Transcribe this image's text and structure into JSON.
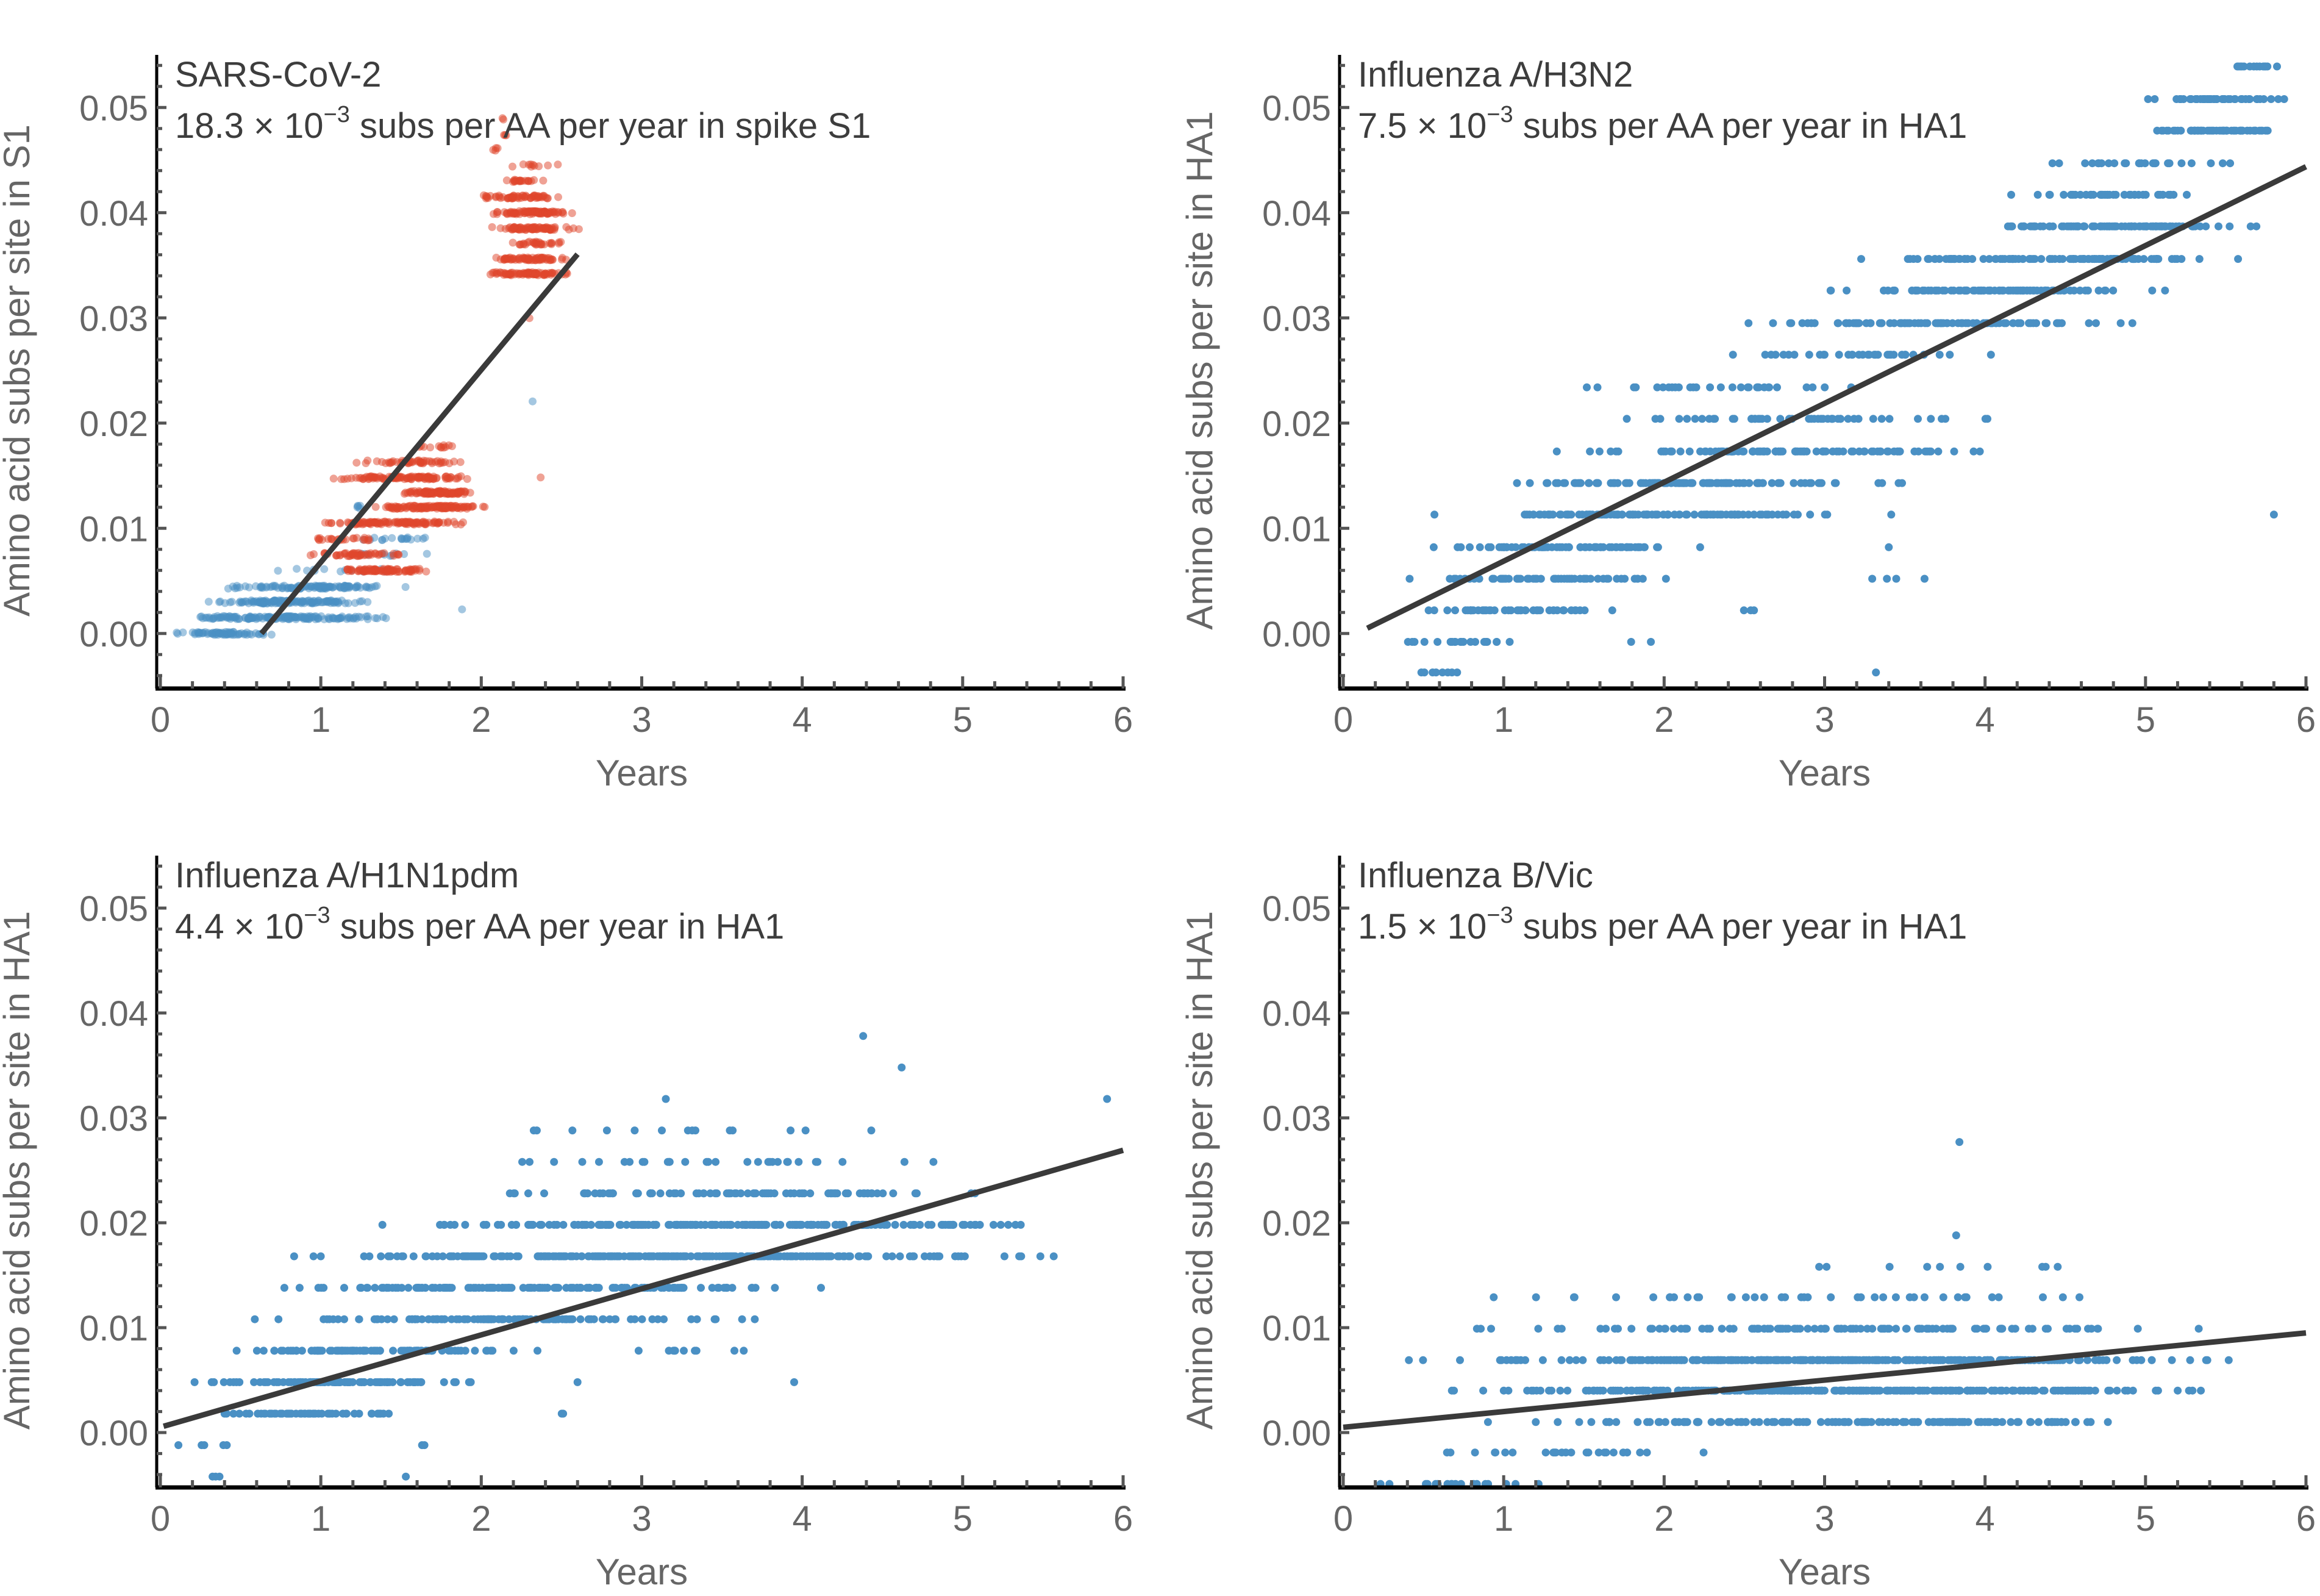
{
  "figure": {
    "x_axis_label": "Years",
    "colors": {
      "blue": "#4a90c4",
      "red": "#e0452b",
      "fit_line": "#3a3a3a",
      "axis": "#000000",
      "tick_label": "#666666",
      "text": "#3d3d3d"
    }
  },
  "chart_data": [
    {
      "type": "scatter",
      "id": "sars",
      "title": "SARS-CoV-2",
      "rate_text": {
        "mantissa": "18.3",
        "exponent": "−3",
        "suffix": "subs per AA per year in spike S1"
      },
      "ylabel": "Amino acid subs per site in S1",
      "xlabel": "Years",
      "xlim": [
        0,
        6
      ],
      "ylim": [
        -0.005,
        0.055
      ],
      "xticks": [
        0,
        1,
        2,
        3,
        4,
        5,
        6
      ],
      "yticks": [
        0.0,
        0.01,
        0.02,
        0.03,
        0.04,
        0.05
      ],
      "ytick_labels": [
        "0.00",
        "0.01",
        "0.02",
        "0.03",
        "0.04",
        "0.05"
      ],
      "fit": {
        "slope": 0.0183,
        "x_range": [
          0.63,
          2.6
        ],
        "y_at_start": 0.0
      },
      "point_opacity": 0.5,
      "levels": [
        {
          "group": "blue",
          "y": 0.0,
          "x": [
            0.02,
            0.75
          ],
          "n": 70
        },
        {
          "group": "blue",
          "y": 0.0015,
          "x": [
            0.05,
            1.55
          ],
          "n": 160
        },
        {
          "group": "blue",
          "y": 0.003,
          "x": [
            0.2,
            1.4
          ],
          "n": 130
        },
        {
          "group": "blue",
          "y": 0.0044,
          "x": [
            0.25,
            1.6
          ],
          "n": 110
        },
        {
          "group": "blue",
          "y": 0.006,
          "x": [
            0.5,
            1.95
          ],
          "n": 12
        },
        {
          "group": "blue",
          "y": 0.0075,
          "x": [
            1.0,
            1.8
          ],
          "n": 10
        },
        {
          "group": "blue",
          "y": 0.009,
          "x": [
            1.05,
            1.85
          ],
          "n": 18
        },
        {
          "group": "blue",
          "y": 0.012,
          "x": [
            1.15,
            1.3
          ],
          "n": 5
        },
        {
          "group": "blue",
          "y": 0.0022,
          "x": [
            1.88,
            1.88
          ],
          "n": 1
        },
        {
          "group": "blue",
          "y": 0.022,
          "x": [
            2.32,
            2.32
          ],
          "n": 1
        },
        {
          "group": "red",
          "y": 0.006,
          "x": [
            1.05,
            1.72
          ],
          "n": 90
        },
        {
          "group": "red",
          "y": 0.0075,
          "x": [
            0.85,
            1.6
          ],
          "n": 50
        },
        {
          "group": "red",
          "y": 0.009,
          "x": [
            0.82,
            1.5
          ],
          "n": 25
        },
        {
          "group": "red",
          "y": 0.0105,
          "x": [
            0.82,
            2.1
          ],
          "n": 110
        },
        {
          "group": "red",
          "y": 0.012,
          "x": [
            1.25,
            2.15
          ],
          "n": 120
        },
        {
          "group": "red",
          "y": 0.0134,
          "x": [
            1.45,
            2.0
          ],
          "n": 100
        },
        {
          "group": "red",
          "y": 0.0148,
          "x": [
            1.0,
            2.05
          ],
          "n": 110
        },
        {
          "group": "red",
          "y": 0.0163,
          "x": [
            1.1,
            2.0
          ],
          "n": 50
        },
        {
          "group": "red",
          "y": 0.0178,
          "x": [
            1.5,
            1.98
          ],
          "n": 12
        },
        {
          "group": "red",
          "y": 0.0148,
          "x": [
            2.37,
            2.37
          ],
          "n": 1
        },
        {
          "group": "red",
          "y": 0.03,
          "x": [
            2.3,
            2.3
          ],
          "n": 1
        },
        {
          "group": "red",
          "y": 0.0342,
          "x": [
            1.96,
            2.6
          ],
          "n": 80
        },
        {
          "group": "red",
          "y": 0.0356,
          "x": [
            1.98,
            2.62
          ],
          "n": 70
        },
        {
          "group": "red",
          "y": 0.0371,
          "x": [
            2.12,
            2.6
          ],
          "n": 30
        },
        {
          "group": "red",
          "y": 0.0385,
          "x": [
            1.98,
            2.65
          ],
          "n": 80
        },
        {
          "group": "red",
          "y": 0.04,
          "x": [
            1.95,
            2.65
          ],
          "n": 90
        },
        {
          "group": "red",
          "y": 0.0415,
          "x": [
            1.92,
            2.6
          ],
          "n": 60
        },
        {
          "group": "red",
          "y": 0.043,
          "x": [
            2.0,
            2.55
          ],
          "n": 20
        },
        {
          "group": "red",
          "y": 0.0445,
          "x": [
            2.05,
            2.55
          ],
          "n": 10
        },
        {
          "group": "red",
          "y": 0.046,
          "x": [
            2.05,
            2.12
          ],
          "n": 4
        },
        {
          "group": "red",
          "y": 0.0475,
          "x": [
            2.1,
            2.2
          ],
          "n": 3
        },
        {
          "group": "red",
          "y": 0.049,
          "x": [
            2.12,
            2.15
          ],
          "n": 2
        }
      ]
    },
    {
      "type": "scatter",
      "id": "h3n2",
      "title": "Influenza A/H3N2",
      "rate_text": {
        "mantissa": "7.5",
        "exponent": "−3",
        "suffix": "subs per AA per year in HA1"
      },
      "ylabel": "Amino acid subs per site in HA1",
      "xlabel": "Years",
      "xlim": [
        0,
        6
      ],
      "ylim": [
        -0.005,
        0.055
      ],
      "xticks": [
        0,
        1,
        2,
        3,
        4,
        5,
        6
      ],
      "yticks": [
        0.0,
        0.01,
        0.02,
        0.03,
        0.04,
        0.05
      ],
      "ytick_labels": [
        "0.00",
        "0.01",
        "0.02",
        "0.03",
        "0.04",
        "0.05"
      ],
      "fit": {
        "slope": 0.0075,
        "x_range": [
          0.15,
          6.0
        ],
        "y_at_start": 0.0005
      },
      "point_opacity": 1.0,
      "levels": [
        {
          "group": "blue",
          "y": -0.0037,
          "x": [
            0.15,
            1.0
          ],
          "n": 8
        },
        {
          "group": "blue",
          "y": -0.0037,
          "x": [
            3.32,
            3.32
          ],
          "n": 1
        },
        {
          "group": "blue",
          "y": -0.0008,
          "x": [
            0.15,
            1.15
          ],
          "n": 20
        },
        {
          "group": "blue",
          "y": -0.0008,
          "x": [
            1.55,
            2.2
          ],
          "n": 2
        },
        {
          "group": "blue",
          "y": 0.0022,
          "x": [
            0.15,
            1.9
          ],
          "n": 45
        },
        {
          "group": "blue",
          "y": 0.0022,
          "x": [
            2.45,
            2.6
          ],
          "n": 3
        },
        {
          "group": "blue",
          "y": 0.0052,
          "x": [
            0.2,
            2.25
          ],
          "n": 60
        },
        {
          "group": "blue",
          "y": 0.0052,
          "x": [
            3.15,
            3.65
          ],
          "n": 4
        },
        {
          "group": "blue",
          "y": 0.0082,
          "x": [
            0.28,
            2.42
          ],
          "n": 70
        },
        {
          "group": "blue",
          "y": 0.0082,
          "x": [
            3.4,
            3.4
          ],
          "n": 1
        },
        {
          "group": "blue",
          "y": 0.0113,
          "x": [
            0.32,
            3.72
          ],
          "n": 110
        },
        {
          "group": "blue",
          "y": 0.0113,
          "x": [
            5.8,
            5.8
          ],
          "n": 1
        },
        {
          "group": "blue",
          "y": 0.0143,
          "x": [
            0.5,
            3.82
          ],
          "n": 110
        },
        {
          "group": "blue",
          "y": 0.0173,
          "x": [
            0.92,
            4.55
          ],
          "n": 100
        },
        {
          "group": "blue",
          "y": 0.0204,
          "x": [
            1.1,
            4.35
          ],
          "n": 50
        },
        {
          "group": "blue",
          "y": 0.0234,
          "x": [
            1.1,
            3.55
          ],
          "n": 30
        },
        {
          "group": "blue",
          "y": 0.0265,
          "x": [
            2.3,
            4.2
          ],
          "n": 35
        },
        {
          "group": "blue",
          "y": 0.0295,
          "x": [
            2.1,
            5.3
          ],
          "n": 90
        },
        {
          "group": "blue",
          "y": 0.0326,
          "x": [
            2.85,
            5.45
          ],
          "n": 100
        },
        {
          "group": "blue",
          "y": 0.0356,
          "x": [
            3.0,
            5.9
          ],
          "n": 110
        },
        {
          "group": "blue",
          "y": 0.0387,
          "x": [
            3.75,
            6.0
          ],
          "n": 100
        },
        {
          "group": "blue",
          "y": 0.0417,
          "x": [
            4.02,
            5.55
          ],
          "n": 40
        },
        {
          "group": "blue",
          "y": 0.0447,
          "x": [
            4.25,
            5.75
          ],
          "n": 25
        },
        {
          "group": "blue",
          "y": 0.0478,
          "x": [
            4.95,
            6.0
          ],
          "n": 60
        },
        {
          "group": "blue",
          "y": 0.0508,
          "x": [
            4.95,
            6.0
          ],
          "n": 55
        },
        {
          "group": "blue",
          "y": 0.0539,
          "x": [
            5.3,
            6.0
          ],
          "n": 14
        }
      ]
    },
    {
      "type": "scatter",
      "id": "h1n1",
      "title": "Influenza A/H1N1pdm",
      "rate_text": {
        "mantissa": "4.4",
        "exponent": "−3",
        "suffix": "subs per AA per year in HA1"
      },
      "ylabel": "Amino acid subs per site in HA1",
      "xlabel": "Years",
      "xlim": [
        0,
        6
      ],
      "ylim": [
        -0.005,
        0.055
      ],
      "xticks": [
        0,
        1,
        2,
        3,
        4,
        5,
        6
      ],
      "yticks": [
        0.0,
        0.01,
        0.02,
        0.03,
        0.04,
        0.05
      ],
      "ytick_labels": [
        "0.00",
        "0.01",
        "0.02",
        "0.03",
        "0.04",
        "0.05"
      ],
      "fit": {
        "slope": 0.0044,
        "x_range": [
          0.02,
          6.0
        ],
        "y_at_start": 0.0006
      },
      "point_opacity": 1.0,
      "levels": [
        {
          "group": "blue",
          "y": -0.0042,
          "x": [
            0.2,
            0.5
          ],
          "n": 3
        },
        {
          "group": "blue",
          "y": -0.0042,
          "x": [
            1.53,
            1.53
          ],
          "n": 1
        },
        {
          "group": "blue",
          "y": -0.0012,
          "x": [
            0.08,
            0.45
          ],
          "n": 5
        },
        {
          "group": "blue",
          "y": -0.0012,
          "x": [
            0.9,
            1.85
          ],
          "n": 2
        },
        {
          "group": "blue",
          "y": 0.0018,
          "x": [
            0.15,
            1.72
          ],
          "n": 60
        },
        {
          "group": "blue",
          "y": 0.0018,
          "x": [
            2.48,
            2.55
          ],
          "n": 2
        },
        {
          "group": "blue",
          "y": 0.0048,
          "x": [
            0.03,
            2.2
          ],
          "n": 110
        },
        {
          "group": "blue",
          "y": 0.0048,
          "x": [
            2.6,
            2.6
          ],
          "n": 1
        },
        {
          "group": "blue",
          "y": 0.0048,
          "x": [
            3.95,
            3.95
          ],
          "n": 1
        },
        {
          "group": "blue",
          "y": 0.0078,
          "x": [
            0.08,
            2.4
          ],
          "n": 100
        },
        {
          "group": "blue",
          "y": 0.0078,
          "x": [
            2.9,
            3.82
          ],
          "n": 10
        },
        {
          "group": "blue",
          "y": 0.0108,
          "x": [
            0.22,
            4.0
          ],
          "n": 120
        },
        {
          "group": "blue",
          "y": 0.0138,
          "x": [
            0.1,
            4.5
          ],
          "n": 150
        },
        {
          "group": "blue",
          "y": 0.0168,
          "x": [
            0.35,
            6.0
          ],
          "n": 260
        },
        {
          "group": "blue",
          "y": 0.0198,
          "x": [
            1.0,
            6.0
          ],
          "n": 200
        },
        {
          "group": "blue",
          "y": 0.0228,
          "x": [
            1.75,
            5.75
          ],
          "n": 80
        },
        {
          "group": "blue",
          "y": 0.0258,
          "x": [
            0.92,
            6.0
          ],
          "n": 30
        },
        {
          "group": "blue",
          "y": 0.0288,
          "x": [
            0.95,
            5.75
          ],
          "n": 14
        },
        {
          "group": "blue",
          "y": 0.0318,
          "x": [
            3.15,
            3.15
          ],
          "n": 1
        },
        {
          "group": "blue",
          "y": 0.0318,
          "x": [
            5.9,
            5.9
          ],
          "n": 1
        },
        {
          "group": "blue",
          "y": 0.0348,
          "x": [
            4.62,
            4.62
          ],
          "n": 1
        },
        {
          "group": "blue",
          "y": 0.0378,
          "x": [
            4.38,
            4.38
          ],
          "n": 1
        }
      ]
    },
    {
      "type": "scatter",
      "id": "bvic",
      "title": "Influenza B/Vic",
      "rate_text": {
        "mantissa": "1.5",
        "exponent": "−3",
        "suffix": "subs per AA per year in HA1"
      },
      "ylabel": "Amino acid subs per site in HA1",
      "xlabel": "Years",
      "xlim": [
        0,
        6
      ],
      "ylim": [
        -0.005,
        0.055
      ],
      "xticks": [
        0,
        1,
        2,
        3,
        4,
        5,
        6
      ],
      "yticks": [
        0.0,
        0.01,
        0.02,
        0.03,
        0.04,
        0.05
      ],
      "ytick_labels": [
        "0.00",
        "0.01",
        "0.02",
        "0.03",
        "0.04",
        "0.05"
      ],
      "fit": {
        "slope": 0.0015,
        "x_range": [
          0.0,
          6.0
        ],
        "y_at_start": 0.0005
      },
      "point_opacity": 1.0,
      "levels": [
        {
          "group": "blue",
          "y": -0.0049,
          "x": [
            0.1,
            1.55
          ],
          "n": 18
        },
        {
          "group": "blue",
          "y": -0.0019,
          "x": [
            0.08,
            2.4
          ],
          "n": 25
        },
        {
          "group": "blue",
          "y": 0.001,
          "x": [
            0.55,
            5.6
          ],
          "n": 150
        },
        {
          "group": "blue",
          "y": 0.004,
          "x": [
            0.1,
            6.0
          ],
          "n": 320
        },
        {
          "group": "blue",
          "y": 0.0069,
          "x": [
            0.05,
            6.0
          ],
          "n": 300
        },
        {
          "group": "blue",
          "y": 0.0099,
          "x": [
            0.28,
            6.0
          ],
          "n": 110
        },
        {
          "group": "blue",
          "y": 0.0129,
          "x": [
            0.17,
            6.0
          ],
          "n": 40
        },
        {
          "group": "blue",
          "y": 0.0158,
          "x": [
            1.27,
            5.8
          ],
          "n": 10
        },
        {
          "group": "blue",
          "y": 0.0188,
          "x": [
            3.82,
            3.82
          ],
          "n": 1
        },
        {
          "group": "blue",
          "y": 0.0277,
          "x": [
            3.84,
            3.84
          ],
          "n": 1
        }
      ]
    }
  ]
}
